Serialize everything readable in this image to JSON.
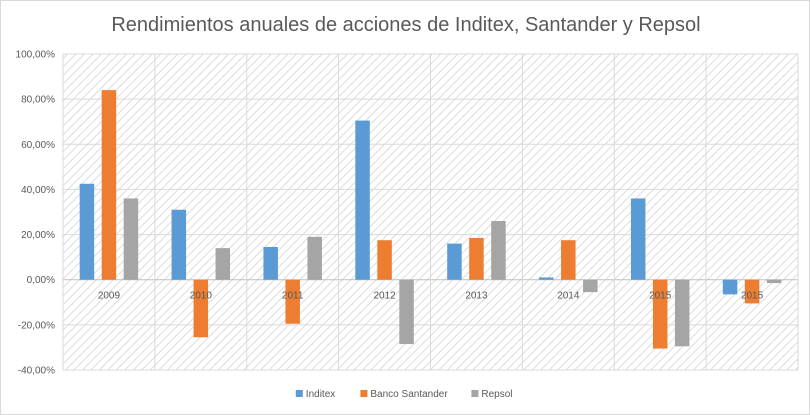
{
  "chart_data": {
    "type": "bar",
    "title": "Rendimientos anuales de acciones de Inditex, Santander y Repsol",
    "xlabel": "",
    "ylabel": "",
    "categories": [
      "2009",
      "2010",
      "2011",
      "2012",
      "2013",
      "2014",
      "2015",
      "2015"
    ],
    "series": [
      {
        "name": "Inditex",
        "color": "#5b9bd5",
        "values": [
          42.5,
          31.0,
          14.5,
          70.5,
          16.0,
          1.0,
          36.0,
          -6.5
        ]
      },
      {
        "name": "Banco Santander",
        "color": "#ed7d31",
        "values": [
          84.0,
          -25.5,
          -19.5,
          17.5,
          18.5,
          17.5,
          -30.5,
          -10.5
        ]
      },
      {
        "name": "Repsol",
        "color": "#a5a5a5",
        "values": [
          36.0,
          14.0,
          19.0,
          -28.5,
          26.0,
          -5.5,
          -29.5,
          -1.5
        ]
      }
    ],
    "ylim": [
      -40,
      100
    ],
    "yticks": [
      "100,00%",
      "80,00%",
      "60,00%",
      "40,00%",
      "20,00%",
      "0,00%",
      "-20,00%",
      "-40,00%"
    ],
    "grid": true,
    "legend_position": "bottom"
  }
}
